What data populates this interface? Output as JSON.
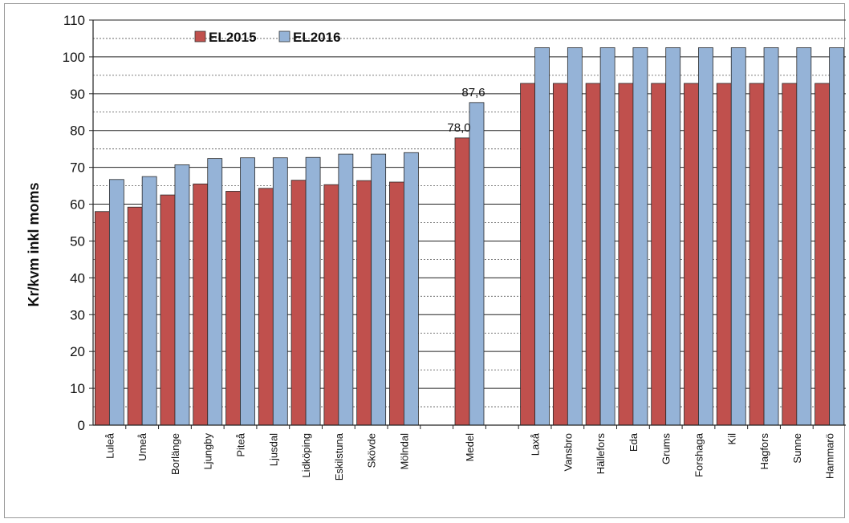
{
  "chart_data": {
    "type": "bar",
    "ylabel": "Kr/kvm inkl moms",
    "ylim": [
      0,
      110
    ],
    "yticks": [
      "0",
      "10",
      "20",
      "30",
      "40",
      "50",
      "60",
      "70",
      "80",
      "90",
      "100",
      "110"
    ],
    "grid": "major solid and minor dotted horizontal lines",
    "legend_position": "top-left",
    "categories": [
      "Luleå",
      "Umeå",
      "Borlänge",
      "Ljungby",
      "Piteå",
      "Ljusdal",
      "Lidköping",
      "Eskilstuna",
      "Skövde",
      "Mölndal",
      "",
      "Medel",
      "",
      "Laxå",
      "Vansbro",
      "Hällefors",
      "Eda",
      "Grums",
      "Forshaga",
      "Kil",
      "Hagfors",
      "Sunne",
      "Hammarö"
    ],
    "series": [
      {
        "name": "EL2015",
        "color": "#C0504D",
        "values": [
          58,
          59.2,
          62.5,
          65.5,
          63.5,
          64.3,
          66.5,
          65.3,
          66.4,
          66,
          null,
          78.0,
          null,
          92.8,
          92.8,
          92.8,
          92.8,
          92.8,
          92.8,
          92.8,
          92.8,
          92.8,
          92.8
        ]
      },
      {
        "name": "EL2016",
        "color": "#95B3D7",
        "values": [
          66.7,
          67.5,
          70.7,
          72.4,
          72.6,
          72.6,
          72.7,
          73.6,
          73.6,
          74,
          null,
          87.6,
          null,
          102.5,
          102.5,
          102.5,
          102.5,
          102.5,
          102.5,
          102.5,
          102.5,
          102.5,
          102.5
        ]
      }
    ],
    "data_labels": [
      {
        "category": "Medel",
        "series": "EL2015",
        "text": "78,0"
      },
      {
        "category": "Medel",
        "series": "EL2016",
        "text": "87,6"
      }
    ]
  }
}
